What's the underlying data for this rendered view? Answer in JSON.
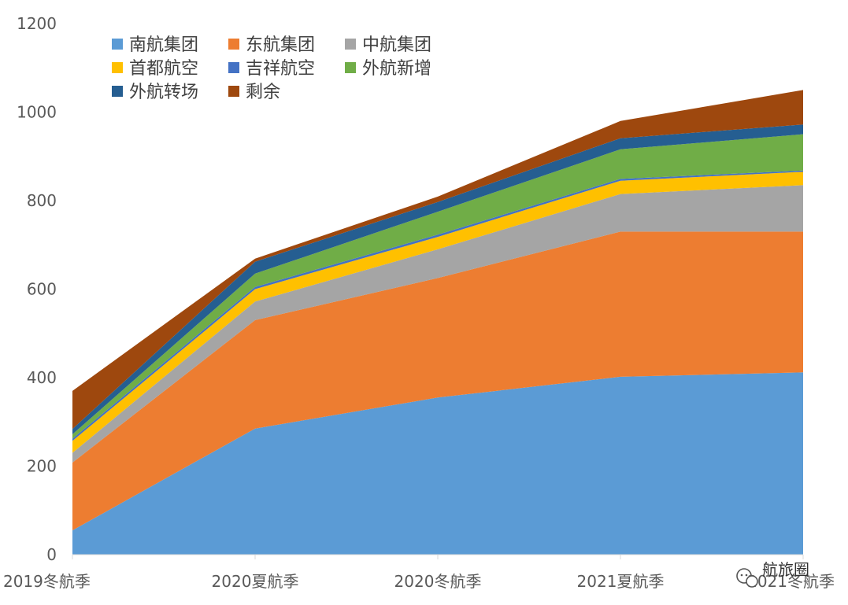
{
  "chart_data": {
    "type": "area",
    "stacked": true,
    "categories": [
      "2019冬航季",
      "2020夏航季",
      "2020冬航季",
      "2021夏航季",
      "2021冬航季"
    ],
    "ylim": [
      0,
      1200
    ],
    "yticks": [
      0,
      200,
      400,
      600,
      800,
      1000,
      1200
    ],
    "grid": false,
    "legend_position": "top-left",
    "series": [
      {
        "name": "南航集团",
        "color": "#5B9BD5",
        "values": [
          55,
          285,
          355,
          402,
          412
        ]
      },
      {
        "name": "东航集团",
        "color": "#ED7D31",
        "values": [
          153,
          245,
          270,
          328,
          318
        ]
      },
      {
        "name": "中航集团",
        "color": "#A5A5A5",
        "values": [
          22,
          42,
          65,
          85,
          105
        ]
      },
      {
        "name": "首都航空",
        "color": "#FFC000",
        "values": [
          27,
          28,
          28,
          30,
          30
        ]
      },
      {
        "name": "吉祥航空",
        "color": "#4472C4",
        "values": [
          5,
          5,
          5,
          4,
          3
        ]
      },
      {
        "name": "外航新增",
        "color": "#70AD47",
        "values": [
          10,
          30,
          52,
          67,
          82
        ]
      },
      {
        "name": "外航转场",
        "color": "#255E91",
        "values": [
          12,
          27,
          22,
          25,
          22
        ]
      },
      {
        "name": "剩余",
        "color": "#9E480E",
        "values": [
          86,
          7,
          12,
          39,
          78
        ]
      }
    ]
  },
  "watermark": {
    "icon": "wechat-icon",
    "text": "航旅圈"
  }
}
